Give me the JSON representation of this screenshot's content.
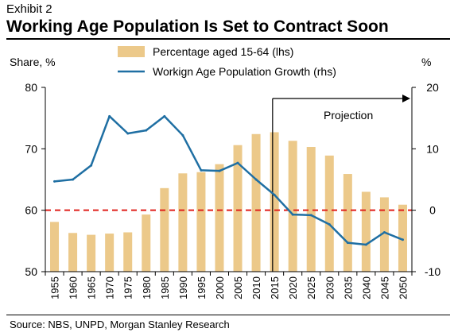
{
  "header": {
    "exhibit": "Exhibit 2",
    "title": "Working Age Population Is Set to Contract Soon"
  },
  "footer": {
    "source": "Source: NBS, UNPD, Morgan Stanley Research"
  },
  "colors": {
    "bar": "#ecc98a",
    "line": "#1f6fa3",
    "reference_line": "#e0201b",
    "axis": "#000000"
  },
  "chart_data": {
    "type": "bar",
    "categories": [
      "1955",
      "1960",
      "1965",
      "1970",
      "1975",
      "1980",
      "1985",
      "1990",
      "1995",
      "2000",
      "2005",
      "2010",
      "2015",
      "2020",
      "2025",
      "2030",
      "2035",
      "2040",
      "2045",
      "2050"
    ],
    "series": [
      {
        "name": "Percentage aged 15-64 (lhs)",
        "type": "bar",
        "axis": "left",
        "values": [
          58.1,
          56.3,
          56.0,
          56.2,
          56.4,
          59.3,
          63.6,
          66.0,
          66.2,
          67.5,
          70.6,
          72.4,
          72.7,
          71.3,
          70.3,
          68.9,
          65.9,
          63.0,
          62.1,
          60.9
        ]
      },
      {
        "name": "Workign Age Population Growth (rhs)",
        "type": "line",
        "axis": "right",
        "values": [
          4.7,
          5.0,
          7.3,
          15.3,
          12.5,
          13.0,
          15.3,
          12.2,
          6.5,
          6.4,
          7.7,
          5.0,
          2.5,
          -0.7,
          -0.8,
          -2.3,
          -5.3,
          -5.6,
          -3.6,
          -4.8
        ]
      }
    ],
    "ylabel_left": "Share, %",
    "ylabel_right": "%",
    "ylim_left": [
      50,
      80
    ],
    "ylim_right": [
      -10,
      20
    ],
    "yticks_left": [
      "50",
      "60",
      "70",
      "80"
    ],
    "yticks_right": [
      "-10",
      "0",
      "10",
      "20"
    ],
    "reference_line_right_value": 0,
    "annotation": "Projection",
    "projection_start": "2015",
    "legend_position": "top"
  }
}
